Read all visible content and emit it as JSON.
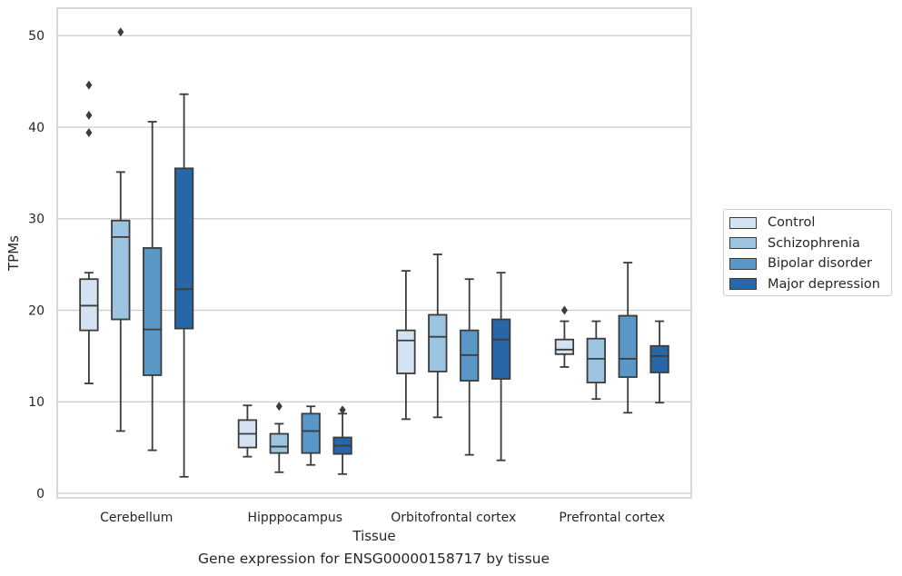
{
  "chart_data": {
    "type": "boxplot",
    "xlabel": "Tissue",
    "ylabel": "TPMs",
    "caption": "Gene expression for ENSG00000158717 by tissue",
    "ylim": [
      -0.5,
      53
    ],
    "yticks": [
      0,
      10,
      20,
      30,
      40,
      50
    ],
    "grid": true,
    "legend_position": "right",
    "categories": [
      "Cerebellum",
      "Hipppocampus",
      "Orbitofrontal cortex",
      "Prefrontal cortex"
    ],
    "series": [
      {
        "name": "Control",
        "color": "#d4e3f2",
        "boxes": [
          {
            "whislo": 12.0,
            "q1": 17.8,
            "med": 20.5,
            "q3": 23.4,
            "whishi": 24.1,
            "fliers": [
              39.4,
              41.3,
              44.6
            ]
          },
          {
            "whislo": 4.0,
            "q1": 5.0,
            "med": 6.5,
            "q3": 8.0,
            "whishi": 9.6,
            "fliers": []
          },
          {
            "whislo": 8.1,
            "q1": 13.1,
            "med": 16.7,
            "q3": 17.8,
            "whishi": 24.3,
            "fliers": []
          },
          {
            "whislo": 13.8,
            "q1": 15.2,
            "med": 15.7,
            "q3": 16.8,
            "whishi": 18.8,
            "fliers": [
              20.0
            ]
          }
        ]
      },
      {
        "name": "Schizophrenia",
        "color": "#9ac4df",
        "boxes": [
          {
            "whislo": 6.8,
            "q1": 19.0,
            "med": 28.0,
            "q3": 29.8,
            "whishi": 35.1,
            "fliers": [
              50.4
            ]
          },
          {
            "whislo": 2.3,
            "q1": 4.4,
            "med": 5.1,
            "q3": 6.5,
            "whishi": 7.6,
            "fliers": [
              9.5
            ]
          },
          {
            "whislo": 8.3,
            "q1": 13.3,
            "med": 17.1,
            "q3": 19.5,
            "whishi": 26.1,
            "fliers": []
          },
          {
            "whislo": 10.3,
            "q1": 12.1,
            "med": 14.7,
            "q3": 16.9,
            "whishi": 18.8,
            "fliers": []
          }
        ]
      },
      {
        "name": "Bipolar disorder",
        "color": "#5997c7",
        "boxes": [
          {
            "whislo": 4.7,
            "q1": 12.9,
            "med": 17.9,
            "q3": 26.8,
            "whishi": 40.6,
            "fliers": []
          },
          {
            "whislo": 3.1,
            "q1": 4.4,
            "med": 6.8,
            "q3": 8.7,
            "whishi": 9.5,
            "fliers": []
          },
          {
            "whislo": 4.2,
            "q1": 12.3,
            "med": 15.1,
            "q3": 17.8,
            "whishi": 23.4,
            "fliers": []
          },
          {
            "whislo": 8.8,
            "q1": 12.7,
            "med": 14.7,
            "q3": 19.4,
            "whishi": 25.2,
            "fliers": []
          }
        ]
      },
      {
        "name": "Major depression",
        "color": "#2767a8",
        "boxes": [
          {
            "whislo": 1.8,
            "q1": 18.0,
            "med": 22.3,
            "q3": 35.5,
            "whishi": 43.6,
            "fliers": []
          },
          {
            "whislo": 2.1,
            "q1": 4.3,
            "med": 5.2,
            "q3": 6.1,
            "whishi": 8.7,
            "fliers": [
              9.1
            ]
          },
          {
            "whislo": 3.6,
            "q1": 12.5,
            "med": 16.8,
            "q3": 19.0,
            "whishi": 24.1,
            "fliers": []
          },
          {
            "whislo": 9.9,
            "q1": 13.2,
            "med": 15.0,
            "q3": 16.1,
            "whishi": 18.8,
            "fliers": []
          }
        ]
      }
    ]
  },
  "style": {
    "frame_color": "#cccccc",
    "grid_color": "#cccccc",
    "edge_color": "#3c3c3c"
  }
}
